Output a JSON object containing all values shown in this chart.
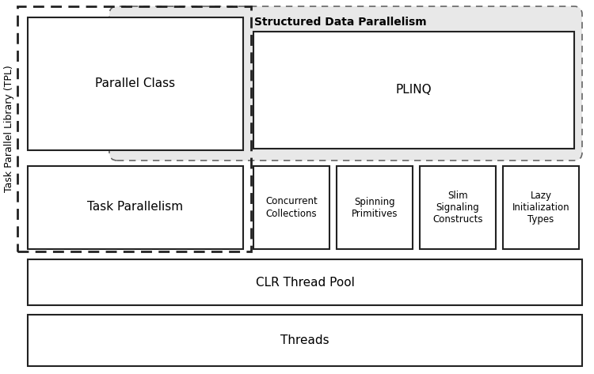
{
  "fig_width": 7.5,
  "fig_height": 4.73,
  "dpi": 100,
  "bg_color": "#ffffff",
  "tpl_label": "Task Parallel Library (TPL)",
  "structured_label": "Structured Data Parallelism",
  "parallel_class_label": "Parallel Class",
  "task_parallelism_label": "Task Parallelism",
  "plinq_label": "PLINQ",
  "concurrent_label": "Concurrent\nCollections",
  "spinning_label": "Spinning\nPrimitives",
  "slim_label": "Slim\nSignaling\nConstructs",
  "lazy_label": "Lazy\nInitialization\nTypes",
  "clr_label": "CLR Thread Pool",
  "threads_label": "Threads",
  "box_bg": "#ffffff",
  "structured_bg": "#e8e8e8",
  "text_color": "#000000",
  "border_color": "#222222",
  "dashed_color": "#666666",
  "tpl_dashed_color": "#222222"
}
